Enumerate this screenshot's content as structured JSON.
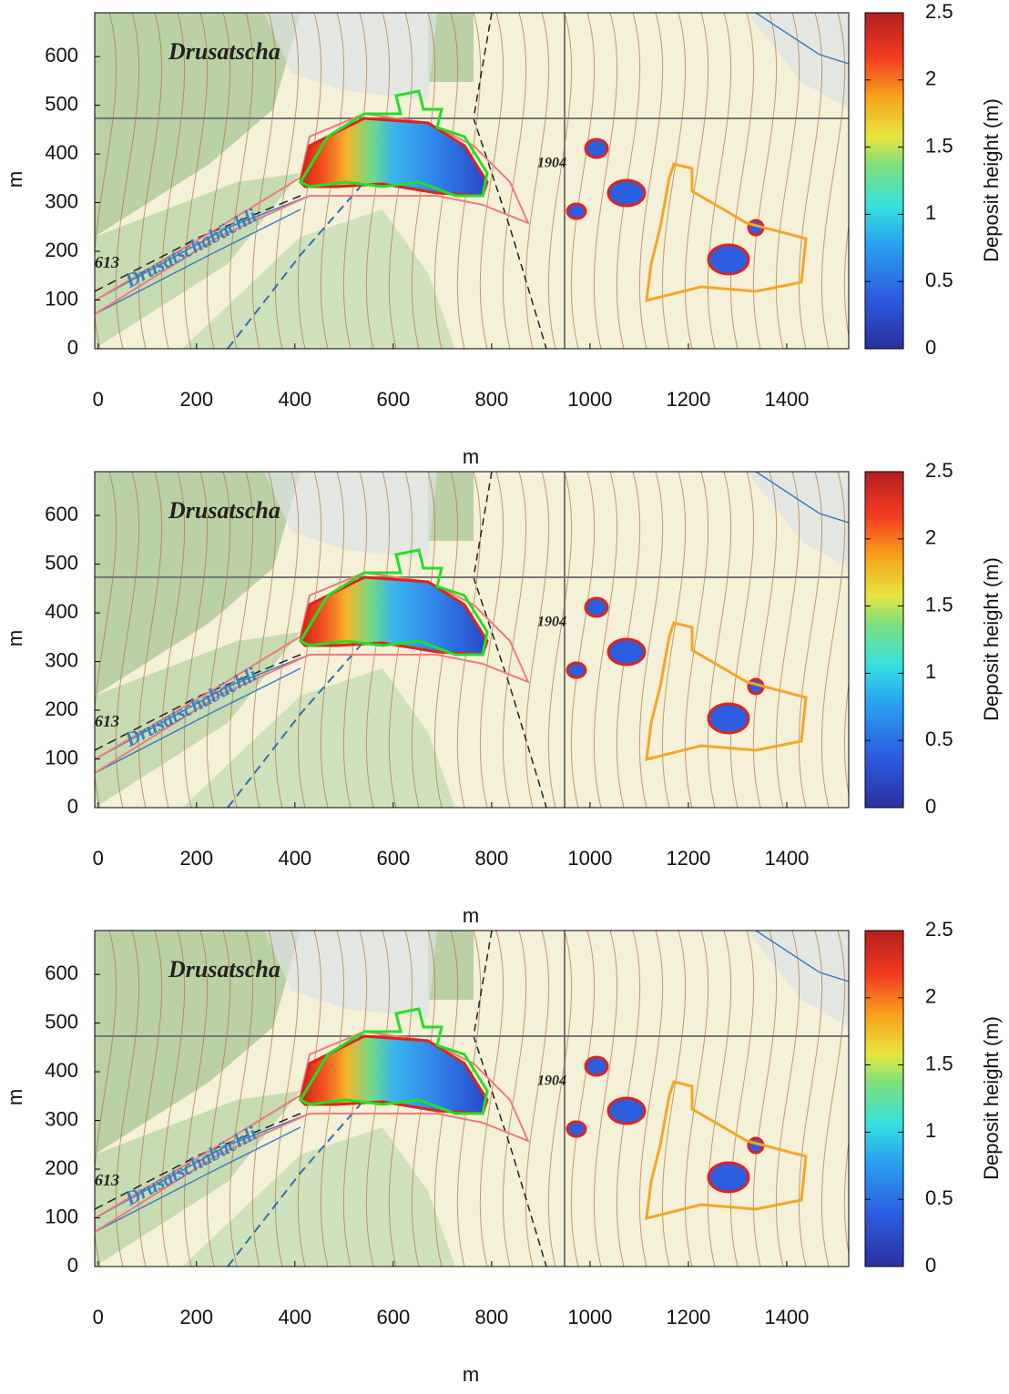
{
  "chart_data": [
    {
      "type": "map-heatmap",
      "xlabel": "m",
      "ylabel": "m",
      "xlim": [
        -7,
        1526
      ],
      "ylim": [
        0,
        690
      ],
      "xticks": [
        0,
        200,
        400,
        600,
        800,
        1000,
        1200,
        1400
      ],
      "yticks": [
        0,
        100,
        200,
        300,
        400,
        500,
        600
      ],
      "colorbar": {
        "label": "Deposit height (m)",
        "lim": [
          0,
          2.5
        ],
        "ticks": [
          0,
          0.5,
          1,
          1.5,
          2,
          2.5
        ]
      },
      "map_labels": [
        "Drusatscha",
        "Drusatschabächli",
        "613",
        "1904"
      ]
    },
    {
      "type": "map-heatmap",
      "xlabel": "m",
      "ylabel": "m",
      "xlim": [
        -7,
        1526
      ],
      "ylim": [
        0,
        690
      ],
      "xticks": [
        0,
        200,
        400,
        600,
        800,
        1000,
        1200,
        1400
      ],
      "yticks": [
        0,
        100,
        200,
        300,
        400,
        500,
        600
      ],
      "colorbar": {
        "label": "Deposit height (m)",
        "lim": [
          0,
          2.5
        ],
        "ticks": [
          0,
          0.5,
          1,
          1.5,
          2,
          2.5
        ]
      },
      "map_labels": [
        "Drusatscha",
        "Drusatschabächli",
        "613",
        "1904"
      ]
    },
    {
      "type": "map-heatmap",
      "xlabel": "m",
      "ylabel": "m",
      "xlim": [
        -7,
        1526
      ],
      "ylim": [
        0,
        690
      ],
      "xticks": [
        0,
        200,
        400,
        600,
        800,
        1000,
        1200,
        1400
      ],
      "yticks": [
        0,
        100,
        200,
        300,
        400,
        500,
        600
      ],
      "colorbar": {
        "label": "Deposit height (m)",
        "lim": [
          0,
          2.5
        ],
        "ticks": [
          0,
          0.5,
          1,
          1.5,
          2,
          2.5
        ]
      },
      "map_labels": [
        "Drusatscha",
        "Drusatschabächli",
        "613",
        "1904"
      ]
    }
  ]
}
